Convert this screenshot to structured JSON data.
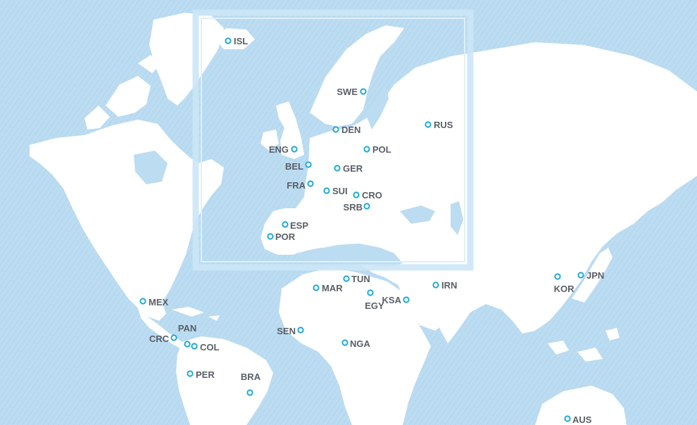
{
  "map": {
    "colors": {
      "ocean": "#bcdcf1",
      "land": "#ffffff",
      "marker": "#1fa9d6",
      "label": "#5a5f66",
      "inset_frame": "#cbe6f6"
    },
    "markers": [
      {
        "code": "ISL"
      },
      {
        "code": "SWE"
      },
      {
        "code": "RUS"
      },
      {
        "code": "DEN"
      },
      {
        "code": "ENG"
      },
      {
        "code": "POL"
      },
      {
        "code": "BEL"
      },
      {
        "code": "GER"
      },
      {
        "code": "FRA"
      },
      {
        "code": "SUI"
      },
      {
        "code": "CRO"
      },
      {
        "code": "SRB"
      },
      {
        "code": "ESP"
      },
      {
        "code": "POR"
      },
      {
        "code": "TUN"
      },
      {
        "code": "MAR"
      },
      {
        "code": "IRN"
      },
      {
        "code": "EGY"
      },
      {
        "code": "KSA"
      },
      {
        "code": "KOR"
      },
      {
        "code": "JPN"
      },
      {
        "code": "MEX"
      },
      {
        "code": "PAN"
      },
      {
        "code": "CRC"
      },
      {
        "code": "COL"
      },
      {
        "code": "SEN"
      },
      {
        "code": "NGA"
      },
      {
        "code": "PER"
      },
      {
        "code": "BRA"
      },
      {
        "code": "AUS"
      }
    ]
  }
}
